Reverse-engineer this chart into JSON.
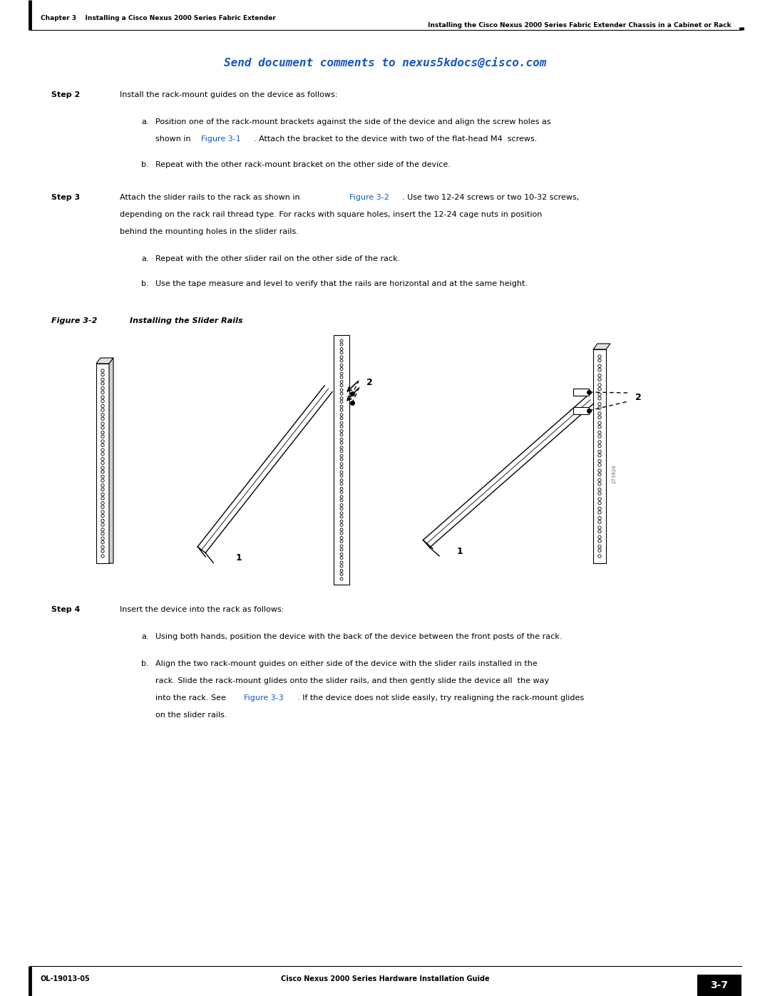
{
  "page_width": 10.8,
  "page_height": 13.97,
  "dpi": 100,
  "background_color": "#ffffff",
  "header_left": "Chapter 3    Installing a Cisco Nexus 2000 Series Fabric Extender",
  "header_right": "Installing the Cisco Nexus 2000 Series Fabric Extender Chassis in a Cabinet or Rack",
  "footer_left": "OL-19013-05",
  "footer_right": "3-7",
  "footer_center": "Cisco Nexus 2000 Series Hardware Installation Guide",
  "send_doc_text": "Send document comments to nexus5kdocs@cisco.com",
  "link_color": "#1557BF",
  "text_color": "#000000"
}
